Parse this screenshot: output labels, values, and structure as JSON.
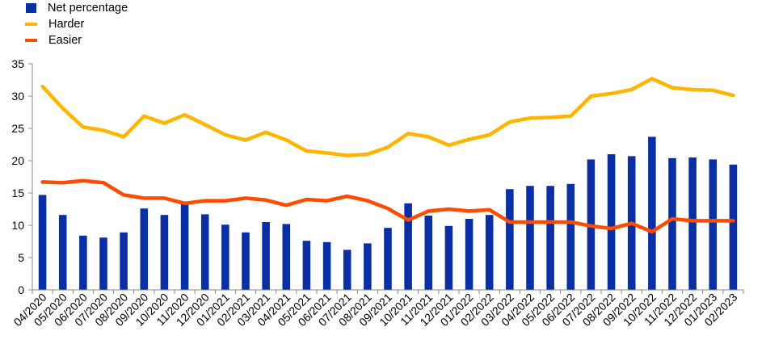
{
  "colors": {
    "net": "#0a2ea3",
    "harder": "#ffb400",
    "easier": "#ff4b00",
    "axis": "#888888"
  },
  "legend": [
    {
      "label": "Net percentage",
      "kind": "bar",
      "color": "#0a2ea3"
    },
    {
      "label": "Harder",
      "kind": "line",
      "color": "#ffb400"
    },
    {
      "label": "Easier",
      "kind": "line",
      "color": "#ff4b00"
    }
  ],
  "chart_data": {
    "type": "bar",
    "categories": [
      "04/2020",
      "05/2020",
      "06/2020",
      "07/2020",
      "08/2020",
      "09/2020",
      "10/2020",
      "11/2020",
      "12/2020",
      "01/2021",
      "02/2021",
      "03/2021",
      "04/2021",
      "05/2021",
      "06/2021",
      "07/2021",
      "08/2021",
      "09/2021",
      "10/2021",
      "11/2021",
      "12/2021",
      "01/2022",
      "02/2022",
      "03/2022",
      "04/2022",
      "05/2022",
      "06/2022",
      "07/2022",
      "08/2022",
      "09/2022",
      "10/2022",
      "11/2022",
      "12/2022",
      "01/2023",
      "02/2023"
    ],
    "series": [
      {
        "name": "Net percentage",
        "type": "bar",
        "values": [
          14.7,
          11.6,
          8.4,
          8.1,
          8.9,
          12.6,
          11.6,
          13.3,
          11.7,
          10.1,
          8.9,
          10.5,
          10.2,
          7.6,
          7.4,
          6.2,
          7.2,
          9.6,
          13.4,
          11.5,
          9.9,
          11.0,
          11.6,
          15.6,
          16.1,
          16.1,
          16.4,
          20.2,
          21.0,
          20.7,
          23.7,
          20.4,
          20.5,
          20.2,
          19.4
        ]
      },
      {
        "name": "Harder",
        "type": "line",
        "values": [
          31.5,
          28.1,
          25.2,
          24.7,
          23.7,
          26.9,
          25.8,
          27.1,
          25.6,
          24.0,
          23.2,
          24.4,
          23.2,
          21.5,
          21.2,
          20.8,
          21.0,
          22.1,
          24.2,
          23.7,
          22.4,
          23.3,
          24.0,
          26.0,
          26.6,
          26.7,
          26.9,
          30.0,
          30.4,
          31.0,
          32.7,
          31.3,
          31.0,
          30.9,
          30.1
        ]
      },
      {
        "name": "Easier",
        "type": "line",
        "values": [
          16.7,
          16.6,
          16.9,
          16.6,
          14.7,
          14.2,
          14.2,
          13.4,
          13.8,
          13.8,
          14.2,
          13.9,
          13.1,
          14.0,
          13.8,
          14.5,
          13.8,
          12.6,
          10.8,
          12.2,
          12.5,
          12.2,
          12.4,
          10.5,
          10.5,
          10.5,
          10.5,
          9.9,
          9.5,
          10.3,
          9.0,
          11.0,
          10.7,
          10.7,
          10.7
        ]
      }
    ],
    "yticks": [
      "0",
      "5",
      "10",
      "15",
      "20",
      "25",
      "30",
      "35"
    ],
    "ylim": [
      0,
      35
    ],
    "grid": false,
    "legend_position": "top-left"
  }
}
